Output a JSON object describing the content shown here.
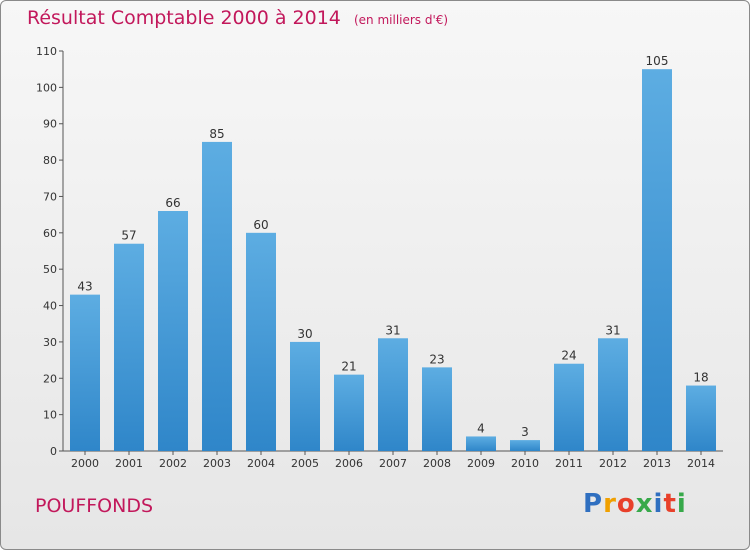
{
  "header": {
    "title": "Résultat Comptable 2000 à 2014",
    "unit": "(en milliers d'€)"
  },
  "footer": {
    "commune": "POUFFONDS",
    "logo_letters": [
      "P",
      "r",
      "o",
      "x",
      "i",
      "t",
      "i"
    ],
    "logo_colors": [
      "#2f6fc0",
      "#f0a000",
      "#e8402a",
      "#37a94a",
      "#2f6fc0",
      "#e8402a",
      "#37a94a"
    ]
  },
  "chart_data": {
    "type": "bar",
    "categories": [
      "2000",
      "2001",
      "2002",
      "2003",
      "2004",
      "2005",
      "2006",
      "2007",
      "2008",
      "2009",
      "2010",
      "2011",
      "2012",
      "2013",
      "2014"
    ],
    "values": [
      43,
      57,
      66,
      85,
      60,
      30,
      21,
      31,
      23,
      4,
      3,
      24,
      31,
      105,
      18
    ],
    "yticks": [
      0,
      10,
      20,
      30,
      40,
      50,
      60,
      70,
      80,
      90,
      100,
      110
    ],
    "ylim": [
      0,
      110
    ],
    "grid": false,
    "bar_color_top": "#5dade2",
    "bar_color_bottom": "#2f86c9"
  }
}
